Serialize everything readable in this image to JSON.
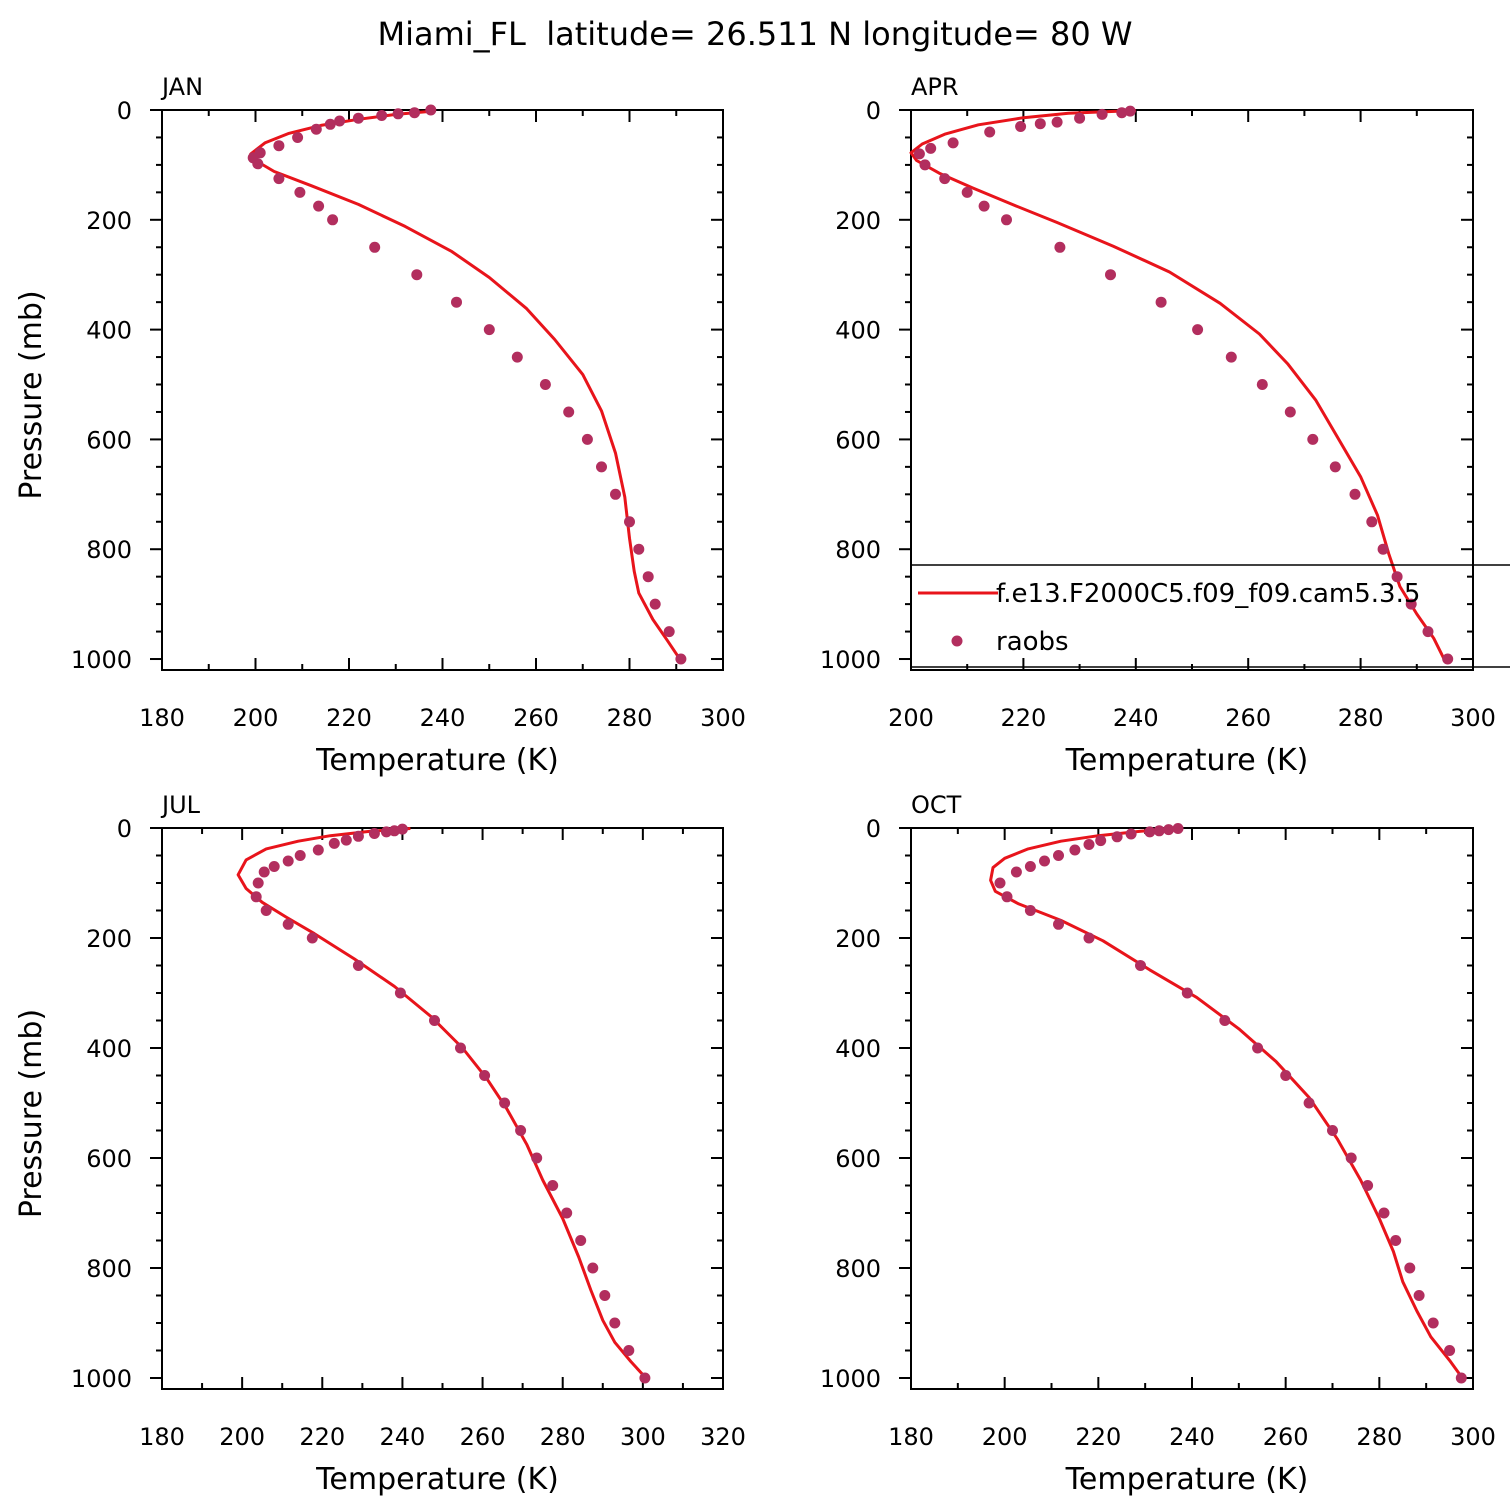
{
  "title": "Miami_FL  latitude= 26.511 N longitude= 80 W",
  "colors": {
    "model": "#e8141b",
    "obs": "#b22e5e",
    "axis": "#000000"
  },
  "legend": {
    "model_label": "f.e13.F2000C5.f09_f09.cam5.3.5",
    "obs_label": "raobs",
    "placement": "inside APR panel, lower area"
  },
  "chart_data": [
    {
      "type": "line",
      "panel": "JAN",
      "title": "JAN",
      "xlabel": "Temperature (K)",
      "ylabel": "Pressure (mb)",
      "xlim": [
        180,
        300
      ],
      "ylim": [
        1020,
        0
      ],
      "xticks": [
        180,
        200,
        220,
        240,
        260,
        280,
        300
      ],
      "yticks": [
        0,
        200,
        400,
        600,
        800,
        1000
      ],
      "series": [
        {
          "name": "f.e13.F2000C5.f09_f09.cam5.3.5",
          "mark": "line",
          "points": [
            [
              238,
              2
            ],
            [
              230,
              8
            ],
            [
              222,
              17
            ],
            [
              214,
              28
            ],
            [
              207,
              43
            ],
            [
              202,
              60
            ],
            [
              199,
              80
            ],
            [
              200,
              92
            ],
            [
              204,
              112
            ],
            [
              212,
              138
            ],
            [
              222,
              172
            ],
            [
              232,
              212
            ],
            [
              242,
              258
            ],
            [
              250,
              305
            ],
            [
              258,
              362
            ],
            [
              264,
              418
            ],
            [
              270,
              482
            ],
            [
              274,
              548
            ],
            [
              277,
              625
            ],
            [
              279,
              705
            ],
            [
              280,
              780
            ],
            [
              281,
              840
            ],
            [
              282,
              880
            ],
            [
              285,
              928
            ],
            [
              288,
              965
            ],
            [
              291,
              1003
            ]
          ]
        },
        {
          "name": "raobs",
          "mark": "scatter",
          "points": [
            [
              237.5,
              0
            ],
            [
              234,
              5
            ],
            [
              230.5,
              7
            ],
            [
              227,
              10
            ],
            [
              222,
              15
            ],
            [
              218,
              20
            ],
            [
              216,
              26
            ],
            [
              213,
              35
            ],
            [
              209,
              50
            ],
            [
              205,
              65
            ],
            [
              201,
              78
            ],
            [
              199.5,
              87
            ],
            [
              200.5,
              98
            ],
            [
              205,
              125
            ],
            [
              209.5,
              150
            ],
            [
              213.5,
              175
            ],
            [
              216.5,
              200
            ],
            [
              225.5,
              250
            ],
            [
              234.5,
              300
            ],
            [
              243,
              350
            ],
            [
              250,
              400
            ],
            [
              256,
              450
            ],
            [
              262,
              500
            ],
            [
              267,
              550
            ],
            [
              271,
              600
            ],
            [
              274,
              650
            ],
            [
              277,
              700
            ],
            [
              280,
              750
            ],
            [
              282,
              800
            ],
            [
              284,
              850
            ],
            [
              285.5,
              900
            ],
            [
              288.5,
              950
            ],
            [
              291,
              1000
            ]
          ]
        }
      ]
    },
    {
      "type": "line",
      "panel": "APR",
      "title": "APR",
      "xlabel": "Temperature (K)",
      "ylabel": "",
      "xlim": [
        200,
        300
      ],
      "ylim": [
        1020,
        0
      ],
      "xticks": [
        200,
        220,
        240,
        260,
        280,
        300
      ],
      "yticks": [
        0,
        200,
        400,
        600,
        800,
        1000
      ],
      "series": [
        {
          "name": "f.e13.F2000C5.f09_f09.cam5.3.5",
          "mark": "line",
          "points": [
            [
              240,
              1
            ],
            [
              228,
              6
            ],
            [
              220,
              14
            ],
            [
              212,
              27
            ],
            [
              206,
              44
            ],
            [
              202,
              62
            ],
            [
              200,
              78
            ],
            [
              201,
              92
            ],
            [
              205,
              115
            ],
            [
              211,
              142
            ],
            [
              218,
              172
            ],
            [
              226,
              205
            ],
            [
              236,
              248
            ],
            [
              246,
              295
            ],
            [
              255,
              352
            ],
            [
              262,
              408
            ],
            [
              267,
              462
            ],
            [
              272,
              528
            ],
            [
              276,
              598
            ],
            [
              280,
              668
            ],
            [
              283,
              738
            ],
            [
              285,
              808
            ],
            [
              287,
              868
            ],
            [
              290,
              918
            ],
            [
              293,
              962
            ],
            [
              295,
              1003
            ]
          ]
        },
        {
          "name": "raobs",
          "mark": "scatter",
          "points": [
            [
              239,
              2
            ],
            [
              237.5,
              5
            ],
            [
              234,
              8
            ],
            [
              230,
              15
            ],
            [
              226,
              22
            ],
            [
              223,
              25
            ],
            [
              219.5,
              30
            ],
            [
              214,
              40
            ],
            [
              207.5,
              60
            ],
            [
              203.5,
              70
            ],
            [
              201.5,
              80
            ],
            [
              202.5,
              100
            ],
            [
              206,
              125
            ],
            [
              210,
              150
            ],
            [
              213,
              175
            ],
            [
              217,
              200
            ],
            [
              226.5,
              250
            ],
            [
              235.5,
              300
            ],
            [
              244.5,
              350
            ],
            [
              251,
              400
            ],
            [
              257,
              450
            ],
            [
              262.5,
              500
            ],
            [
              267.5,
              550
            ],
            [
              271.5,
              600
            ],
            [
              275.5,
              650
            ],
            [
              279,
              700
            ],
            [
              282,
              750
            ],
            [
              284,
              800
            ],
            [
              286.5,
              850
            ],
            [
              289,
              900
            ],
            [
              292,
              950
            ],
            [
              295.5,
              1000
            ]
          ]
        }
      ]
    },
    {
      "type": "line",
      "panel": "JUL",
      "title": "JUL",
      "xlabel": "Temperature (K)",
      "ylabel": "Pressure (mb)",
      "xlim": [
        180,
        320
      ],
      "ylim": [
        1020,
        0
      ],
      "xticks": [
        180,
        200,
        220,
        240,
        260,
        280,
        300,
        320
      ],
      "yticks": [
        0,
        200,
        400,
        600,
        800,
        1000
      ],
      "series": [
        {
          "name": "f.e13.F2000C5.f09_f09.cam5.3.5",
          "mark": "line",
          "points": [
            [
              242,
              1
            ],
            [
              232,
              6
            ],
            [
              222,
              14
            ],
            [
              214,
              24
            ],
            [
              206,
              38
            ],
            [
              201,
              58
            ],
            [
              199,
              85
            ],
            [
              201,
              110
            ],
            [
              205,
              135
            ],
            [
              211,
              162
            ],
            [
              218,
              192
            ],
            [
              228,
              238
            ],
            [
              238,
              288
            ],
            [
              247,
              342
            ],
            [
              255,
              400
            ],
            [
              261,
              455
            ],
            [
              266,
              510
            ],
            [
              271,
              575
            ],
            [
              275,
              640
            ],
            [
              280,
              710
            ],
            [
              284,
              780
            ],
            [
              287,
              840
            ],
            [
              290,
              895
            ],
            [
              293,
              935
            ],
            [
              297,
              970
            ],
            [
              301,
              1002
            ]
          ]
        },
        {
          "name": "raobs",
          "mark": "scatter",
          "points": [
            [
              240,
              2
            ],
            [
              238,
              5
            ],
            [
              236,
              7
            ],
            [
              233,
              10
            ],
            [
              229,
              15
            ],
            [
              226,
              22
            ],
            [
              223,
              28
            ],
            [
              219,
              40
            ],
            [
              214.5,
              50
            ],
            [
              211.5,
              60
            ],
            [
              208,
              70
            ],
            [
              205.5,
              80
            ],
            [
              204,
              100
            ],
            [
              203.5,
              125
            ],
            [
              206,
              150
            ],
            [
              211.5,
              175
            ],
            [
              217.5,
              200
            ],
            [
              229,
              250
            ],
            [
              239.5,
              300
            ],
            [
              248,
              350
            ],
            [
              254.5,
              400
            ],
            [
              260.5,
              450
            ],
            [
              265.5,
              500
            ],
            [
              269.5,
              550
            ],
            [
              273.5,
              600
            ],
            [
              277.5,
              650
            ],
            [
              281,
              700
            ],
            [
              284.5,
              750
            ],
            [
              287.5,
              800
            ],
            [
              290.5,
              850
            ],
            [
              293,
              900
            ],
            [
              296.5,
              950
            ],
            [
              300.5,
              1000
            ]
          ]
        }
      ]
    },
    {
      "type": "line",
      "panel": "OCT",
      "title": "OCT",
      "xlabel": "Temperature (K)",
      "ylabel": "",
      "xlim": [
        180,
        300
      ],
      "ylim": [
        1020,
        0
      ],
      "xticks": [
        180,
        200,
        220,
        240,
        260,
        280,
        300
      ],
      "yticks": [
        0,
        200,
        400,
        600,
        800,
        1000
      ],
      "series": [
        {
          "name": "f.e13.F2000C5.f09_f09.cam5.3.5",
          "mark": "line",
          "points": [
            [
              237,
              1
            ],
            [
              229,
              6
            ],
            [
              220,
              14
            ],
            [
              212,
              24
            ],
            [
              205,
              38
            ],
            [
              200,
              55
            ],
            [
              197.5,
              72
            ],
            [
              197,
              95
            ],
            [
              198,
              115
            ],
            [
              203,
              138
            ],
            [
              212,
              168
            ],
            [
              221,
              205
            ],
            [
              231,
              258
            ],
            [
              241,
              308
            ],
            [
              250,
              365
            ],
            [
              258,
              425
            ],
            [
              265,
              490
            ],
            [
              271,
              565
            ],
            [
              276,
              640
            ],
            [
              280,
              710
            ],
            [
              283,
              770
            ],
            [
              285,
              825
            ],
            [
              288,
              878
            ],
            [
              291,
              925
            ],
            [
              295,
              968
            ],
            [
              298,
              1003
            ]
          ]
        },
        {
          "name": "raobs",
          "mark": "scatter",
          "points": [
            [
              237,
              1
            ],
            [
              235,
              3
            ],
            [
              233,
              5
            ],
            [
              231,
              7
            ],
            [
              227,
              11
            ],
            [
              224,
              16
            ],
            [
              220.5,
              23
            ],
            [
              218,
              30
            ],
            [
              215,
              40
            ],
            [
              211.5,
              50
            ],
            [
              208.5,
              60
            ],
            [
              205.5,
              70
            ],
            [
              202.5,
              80
            ],
            [
              199,
              100
            ],
            [
              200.5,
              125
            ],
            [
              205.5,
              150
            ],
            [
              211.5,
              175
            ],
            [
              218,
              200
            ],
            [
              229,
              250
            ],
            [
              239,
              300
            ],
            [
              247,
              350
            ],
            [
              254,
              400
            ],
            [
              260,
              450
            ],
            [
              265,
              500
            ],
            [
              270,
              550
            ],
            [
              274,
              600
            ],
            [
              277.5,
              650
            ],
            [
              281,
              700
            ],
            [
              283.5,
              750
            ],
            [
              286.5,
              800
            ],
            [
              288.5,
              850
            ],
            [
              291.5,
              900
            ],
            [
              295,
              950
            ],
            [
              297.5,
              1000
            ]
          ]
        }
      ]
    }
  ]
}
